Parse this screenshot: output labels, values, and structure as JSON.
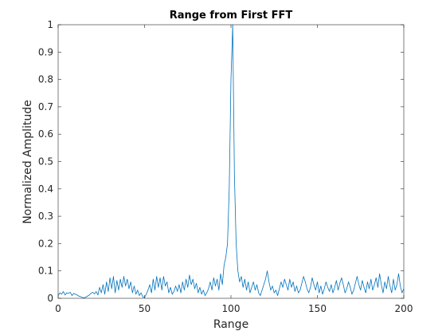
{
  "chart_data": {
    "type": "line",
    "title": "Range from First FFT",
    "xlabel": "Range",
    "ylabel": "Normalized Amplitude",
    "xlim": [
      0,
      200
    ],
    "ylim": [
      0,
      1
    ],
    "xticks": [
      0,
      50,
      100,
      150,
      200
    ],
    "yticks": [
      0,
      0.1,
      0.2,
      0.3,
      0.4,
      0.5,
      0.6,
      0.7,
      0.8,
      0.9,
      1
    ],
    "grid": false,
    "series": [
      {
        "color": "#0072BD",
        "x": [
          0,
          1,
          2,
          3,
          4,
          5,
          6,
          7,
          8,
          9,
          10,
          11,
          12,
          13,
          14,
          15,
          16,
          17,
          18,
          19,
          20,
          21,
          22,
          23,
          24,
          25,
          26,
          27,
          28,
          29,
          30,
          31,
          32,
          33,
          34,
          35,
          36,
          37,
          38,
          39,
          40,
          41,
          42,
          43,
          44,
          45,
          46,
          47,
          48,
          49,
          50,
          51,
          52,
          53,
          54,
          55,
          56,
          57,
          58,
          59,
          60,
          61,
          62,
          63,
          64,
          65,
          66,
          67,
          68,
          69,
          70,
          71,
          72,
          73,
          74,
          75,
          76,
          77,
          78,
          79,
          80,
          81,
          82,
          83,
          84,
          85,
          86,
          87,
          88,
          89,
          90,
          91,
          92,
          93,
          94,
          95,
          96,
          97,
          98,
          99,
          100,
          101,
          102,
          103,
          104,
          105,
          106,
          107,
          108,
          109,
          110,
          111,
          112,
          113,
          114,
          115,
          116,
          117,
          118,
          119,
          120,
          121,
          122,
          123,
          124,
          125,
          126,
          127,
          128,
          129,
          130,
          131,
          132,
          133,
          134,
          135,
          136,
          137,
          138,
          139,
          140,
          141,
          142,
          143,
          144,
          145,
          146,
          147,
          148,
          149,
          150,
          151,
          152,
          153,
          154,
          155,
          156,
          157,
          158,
          159,
          160,
          161,
          162,
          163,
          164,
          165,
          166,
          167,
          168,
          169,
          170,
          171,
          172,
          173,
          174,
          175,
          176,
          177,
          178,
          179,
          180,
          181,
          182,
          183,
          184,
          185,
          186,
          187,
          188,
          189,
          190,
          191,
          192,
          193,
          194,
          195,
          196,
          197,
          198,
          199,
          200
        ],
        "y": [
          0.01,
          0.02,
          0.015,
          0.025,
          0.012,
          0.02,
          0.018,
          0.022,
          0.01,
          0.018,
          0.015,
          0.012,
          0.008,
          0.006,
          0.003,
          0.002,
          0.004,
          0.008,
          0.012,
          0.018,
          0.022,
          0.016,
          0.025,
          0.012,
          0.04,
          0.02,
          0.05,
          0.015,
          0.06,
          0.025,
          0.075,
          0.035,
          0.08,
          0.02,
          0.065,
          0.03,
          0.07,
          0.04,
          0.08,
          0.045,
          0.07,
          0.035,
          0.06,
          0.02,
          0.045,
          0.015,
          0.03,
          0.01,
          0.02,
          0.005,
          0.003,
          0.015,
          0.03,
          0.05,
          0.02,
          0.07,
          0.03,
          0.08,
          0.04,
          0.075,
          0.03,
          0.08,
          0.045,
          0.06,
          0.02,
          0.04,
          0.015,
          0.025,
          0.045,
          0.025,
          0.05,
          0.02,
          0.06,
          0.03,
          0.07,
          0.04,
          0.085,
          0.05,
          0.07,
          0.035,
          0.055,
          0.02,
          0.04,
          0.015,
          0.03,
          0.01,
          0.02,
          0.035,
          0.06,
          0.03,
          0.075,
          0.045,
          0.07,
          0.03,
          0.09,
          0.05,
          0.12,
          0.15,
          0.2,
          0.4,
          0.8,
          1.0,
          0.45,
          0.2,
          0.1,
          0.06,
          0.08,
          0.04,
          0.07,
          0.03,
          0.06,
          0.02,
          0.04,
          0.06,
          0.03,
          0.05,
          0.02,
          0.01,
          0.03,
          0.05,
          0.07,
          0.1,
          0.06,
          0.03,
          0.045,
          0.02,
          0.03,
          0.01,
          0.035,
          0.06,
          0.04,
          0.07,
          0.05,
          0.03,
          0.07,
          0.04,
          0.06,
          0.025,
          0.045,
          0.02,
          0.03,
          0.055,
          0.08,
          0.06,
          0.035,
          0.02,
          0.04,
          0.075,
          0.05,
          0.03,
          0.06,
          0.02,
          0.045,
          0.015,
          0.035,
          0.06,
          0.04,
          0.025,
          0.05,
          0.02,
          0.04,
          0.065,
          0.03,
          0.055,
          0.075,
          0.05,
          0.02,
          0.035,
          0.06,
          0.04,
          0.015,
          0.03,
          0.055,
          0.08,
          0.05,
          0.03,
          0.065,
          0.04,
          0.02,
          0.06,
          0.035,
          0.07,
          0.03,
          0.05,
          0.075,
          0.04,
          0.09,
          0.05,
          0.02,
          0.06,
          0.035,
          0.08,
          0.045,
          0.02,
          0.07,
          0.03,
          0.05,
          0.09,
          0.045,
          0.02,
          0.035
        ]
      }
    ]
  }
}
